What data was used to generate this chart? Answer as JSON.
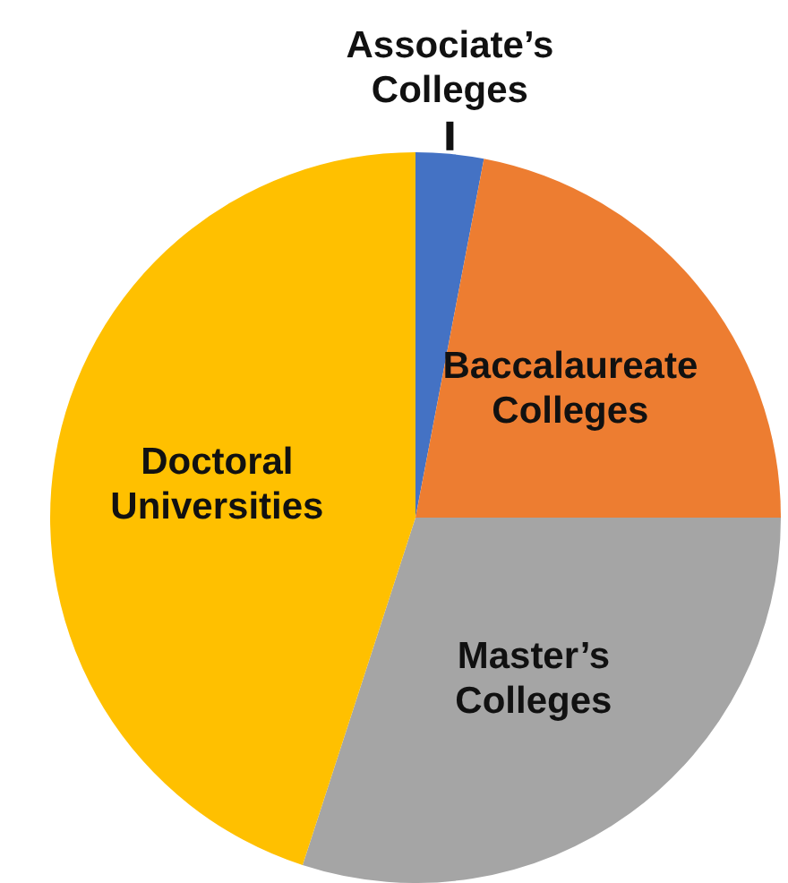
{
  "chart_data": {
    "type": "pie",
    "categories": [
      "Associate’s Colleges",
      "Baccalaureate Colleges",
      "Master’s Colleges",
      "Doctoral Universities"
    ],
    "values": [
      3,
      22,
      30,
      45
    ],
    "colors": [
      "#4472c4",
      "#ed7d31",
      "#a5a5a5",
      "#ffc000"
    ],
    "legend": false
  }
}
